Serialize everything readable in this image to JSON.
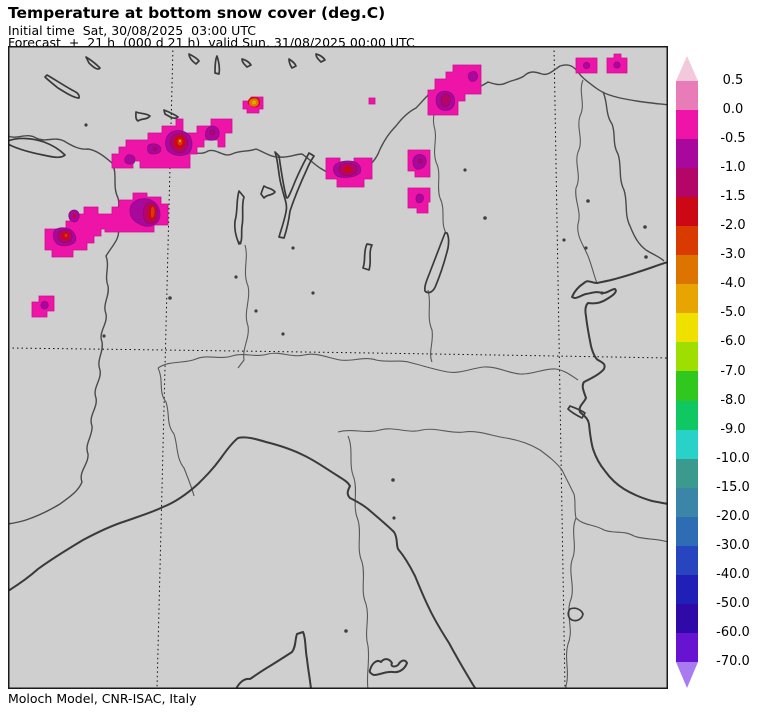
{
  "header": {
    "title": "Temperature at bottom snow cover (deg.C)",
    "initial_time_line": "Initial time  Sat, 30/08/2025  03:00 UTC",
    "forecast_line": "Forecast  +  21 h  (000 d 21 h)  valid Sun, 31/08/2025 00:00 UTC"
  },
  "footer": {
    "credit": "Moloch Model, CNR-ISAC, Italy"
  },
  "map": {
    "background_color": "#CFCFCF",
    "coastline_color": "#3A3A3A",
    "anomaly_fill_color": "#EE14A8",
    "grid_style": "dotted"
  },
  "colorbar": {
    "unit": "deg.C",
    "arrow_top_color": "#F2C8DC",
    "arrow_bottom_color": "#A87CF0",
    "segments": [
      {
        "range": "0.0 to 0.5",
        "color": "#E87CB8"
      },
      {
        "range": "-0.5 to 0.0",
        "color": "#EE14A8"
      },
      {
        "range": "-1.0 to -0.5",
        "color": "#A8089C"
      },
      {
        "range": "-1.5 to -1.0",
        "color": "#B40668"
      },
      {
        "range": "-2.0 to -1.5",
        "color": "#CC0814"
      },
      {
        "range": "-3.0 to -2.0",
        "color": "#D83A00"
      },
      {
        "range": "-4.0 to -3.0",
        "color": "#DE7400"
      },
      {
        "range": "-5.0 to -4.0",
        "color": "#E8A400"
      },
      {
        "range": "-6.0 to -5.0",
        "color": "#EFE000"
      },
      {
        "range": "-7.0 to -6.0",
        "color": "#9EDE00"
      },
      {
        "range": "-8.0 to -7.0",
        "color": "#30C81E"
      },
      {
        "range": "-9.0 to -8.0",
        "color": "#0FC862"
      },
      {
        "range": "-10.0 to -9.0",
        "color": "#28D2C8"
      },
      {
        "range": "-15.0 to -10.0",
        "color": "#3A9A8E"
      },
      {
        "range": "-20.0 to -15.0",
        "color": "#3A85A8"
      },
      {
        "range": "-30.0 to -20.0",
        "color": "#2E6CB4"
      },
      {
        "range": "-40.0 to -30.0",
        "color": "#2845C0"
      },
      {
        "range": "-50.0 to -40.0",
        "color": "#2020B8"
      },
      {
        "range": "-60.0 to -50.0",
        "color": "#300AA8"
      },
      {
        "range": "-70.0 to -60.0",
        "color": "#6812D2"
      }
    ],
    "ticks": [
      "0.5",
      "0.0",
      "-0.5",
      "-1.0",
      "-1.5",
      "-2.0",
      "-3.0",
      "-4.0",
      "-5.0",
      "-6.0",
      "-7.0",
      "-8.0",
      "-9.0",
      "-10.0",
      "-15.0",
      "-20.0",
      "-30.0",
      "-40.0",
      "-50.0",
      "-60.0",
      "-70.0"
    ]
  }
}
